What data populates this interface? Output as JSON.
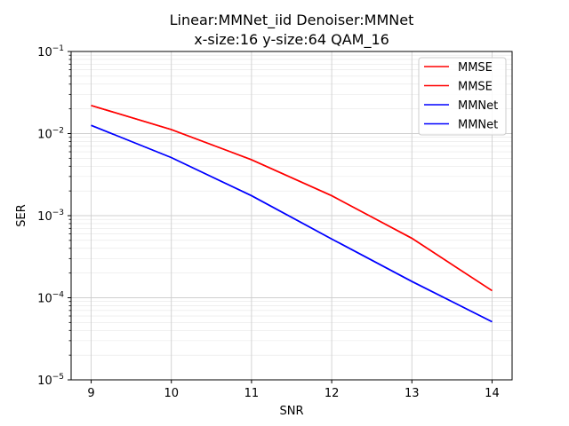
{
  "chart_data": {
    "type": "line",
    "title_lines": [
      "Linear:MMNet_iid Denoiser:MMNet",
      "x-size:16 y-size:64 QAM_16"
    ],
    "xlabel": "SNR",
    "ylabel": "SER",
    "x": [
      9,
      10,
      11,
      12,
      13,
      14
    ],
    "xlim": [
      8.75,
      14.25
    ],
    "y_scale": "log",
    "ylim": [
      1e-05,
      0.1
    ],
    "x_ticks": [
      "9",
      "10",
      "11",
      "12",
      "13",
      "14"
    ],
    "y_ticks": [
      {
        "value": 1e-05,
        "base": "10",
        "exp": "−5"
      },
      {
        "value": 0.0001,
        "base": "10",
        "exp": "−4"
      },
      {
        "value": 0.001,
        "base": "10",
        "exp": "−3"
      },
      {
        "value": 0.01,
        "base": "10",
        "exp": "−2"
      },
      {
        "value": 0.1,
        "base": "10",
        "exp": "−1"
      }
    ],
    "grid": true,
    "legend_position": "top-right",
    "series": [
      {
        "name": "MMSE",
        "color": "#ff0000",
        "values": [
          0.022,
          0.0112,
          0.0048,
          0.00175,
          0.00053,
          0.000122
        ]
      },
      {
        "name": "MMSE",
        "color": "#ff0000",
        "values": [
          0.022,
          0.0112,
          0.0048,
          0.00175,
          0.00053,
          0.000122
        ]
      },
      {
        "name": "MMNet",
        "color": "#0000ff",
        "values": [
          0.0126,
          0.0051,
          0.00175,
          0.00052,
          0.000158,
          5.1e-05
        ]
      },
      {
        "name": "MMNet",
        "color": "#0000ff",
        "values": [
          0.0126,
          0.0051,
          0.00175,
          0.00052,
          0.000158,
          5.1e-05
        ]
      }
    ]
  }
}
